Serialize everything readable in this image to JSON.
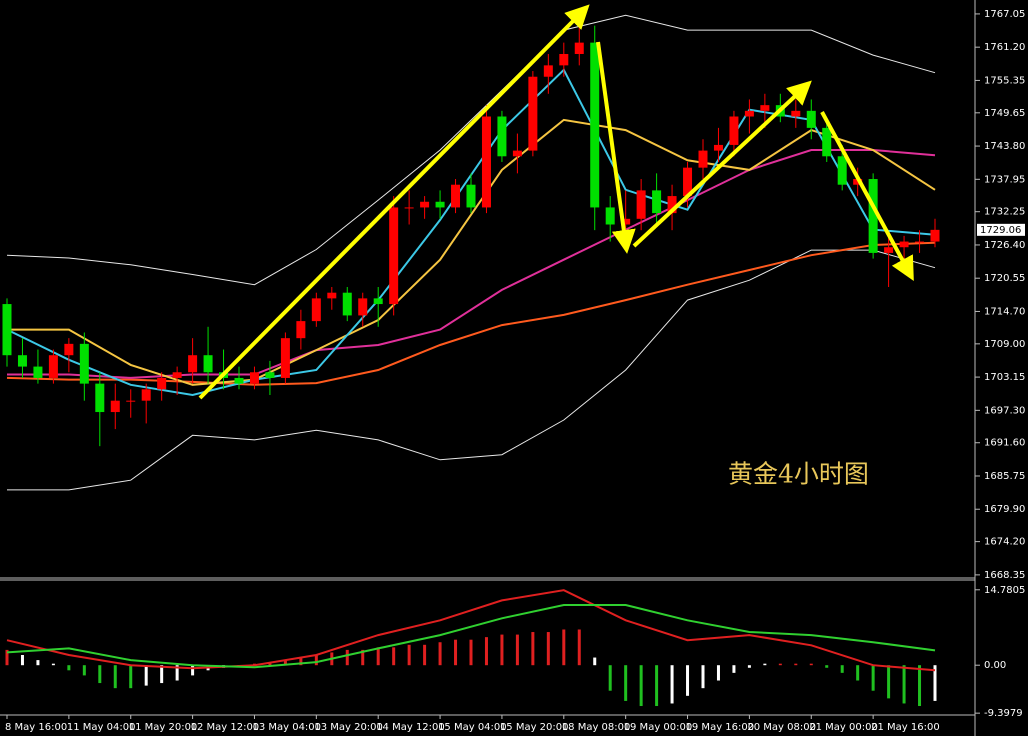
{
  "chart_data": {
    "type": "candlestick",
    "annotation": "黄金4小时图",
    "categories": [
      "8 May 16:00",
      null,
      null,
      null,
      "11 May 04:00",
      null,
      null,
      null,
      "11 May 20:00",
      null,
      null,
      null,
      "12 May 12:00",
      null,
      null,
      null,
      "13 May 04:00",
      null,
      null,
      null,
      "13 May 20:00",
      null,
      null,
      null,
      "14 May 12:00",
      null,
      null,
      null,
      "15 May 04:00",
      null,
      null,
      null,
      "15 May 20:00",
      null,
      null,
      null,
      "18 May 08:00",
      null,
      null,
      null,
      "19 May 00:00",
      null,
      null,
      null,
      "19 May 16:00",
      null,
      null,
      null,
      "20 May 08:00",
      null,
      null,
      null,
      "21 May 00:00",
      null,
      null,
      null,
      "21 May 16:00",
      null,
      null,
      null,
      null
    ],
    "open": [
      1716,
      1707,
      1705,
      1703,
      1707,
      1709,
      1702,
      1697,
      1699,
      1699,
      1701,
      1703,
      1704,
      1707,
      1704,
      1703,
      1702,
      1704,
      1703,
      1710,
      1713,
      1717,
      1718,
      1714,
      1717,
      1716,
      1733,
      1733,
      1734,
      1733,
      1737,
      1733,
      1749,
      1742,
      1743,
      1756,
      1758,
      1760,
      1762,
      1733,
      1730,
      1731,
      1736,
      1732,
      1735,
      1740,
      1743,
      1744,
      1749,
      1750,
      1751,
      1749,
      1750,
      1747,
      1742,
      1737,
      1738,
      1725,
      1726,
      1727,
      1727
    ],
    "high": [
      1717,
      1710,
      1708,
      1708,
      1710,
      1711,
      1704,
      1702,
      1701,
      1702,
      1704,
      1705,
      1710,
      1712,
      1708,
      1705,
      1705,
      1706,
      1711,
      1715,
      1718,
      1719,
      1719,
      1718,
      1719,
      1735,
      1736,
      1735,
      1736,
      1738,
      1739,
      1751,
      1750,
      1746,
      1757,
      1760,
      1762,
      1768,
      1765,
      1735,
      1736,
      1738,
      1739,
      1737,
      1741,
      1745,
      1747,
      1750,
      1752,
      1753,
      1753,
      1752,
      1752,
      1748,
      1744,
      1740,
      1739,
      1728,
      1728,
      1729,
      1731
    ],
    "low": [
      1705,
      1703,
      1702,
      1702,
      1704,
      1699,
      1691,
      1694,
      1696,
      1695,
      1699,
      1700,
      1702,
      1702,
      1701,
      1701,
      1701,
      1700,
      1702,
      1708,
      1712,
      1715,
      1713,
      1712,
      1712,
      1714,
      1730,
      1731,
      1731,
      1732,
      1732,
      1732,
      1741,
      1739,
      1742,
      1753,
      1756,
      1758,
      1729,
      1727,
      1728,
      1729,
      1730,
      1729,
      1733,
      1738,
      1741,
      1742,
      1746,
      1747,
      1748,
      1747,
      1745,
      1741,
      1736,
      1735,
      1724,
      1719,
      1724,
      1725,
      1726
    ],
    "close": [
      1707,
      1705,
      1703,
      1707,
      1709,
      1702,
      1697,
      1699,
      1699,
      1701,
      1703,
      1704,
      1707,
      1704,
      1703,
      1702,
      1704,
      1703,
      1710,
      1713,
      1717,
      1718,
      1714,
      1717,
      1716,
      1733,
      1733,
      1734,
      1733,
      1737,
      1733,
      1749,
      1742,
      1743,
      1756,
      1758,
      1760,
      1762,
      1733,
      1730,
      1731,
      1736,
      1732,
      1735,
      1740,
      1743,
      1744,
      1749,
      1750,
      1751,
      1749,
      1750,
      1747,
      1742,
      1737,
      1738,
      1725,
      1726,
      1727,
      1727,
      1729.06
    ],
    "up_color": "#ff0000",
    "down_color": "#00e000",
    "ylim": [
      1667.8,
      1769.5
    ],
    "yticks": [
      1767.05,
      {
        "value": 1761.2,
        "label": "1761.20"
      },
      1755.35,
      1749.65,
      {
        "value": 1743.8,
        "label": "1743.80"
      },
      1737.95,
      1732.25,
      {
        "value": 1726.4,
        "label": "1726.40"
      },
      1720.55,
      {
        "value": 1714.7,
        "label": "1714.70"
      },
      {
        "value": 1709.0,
        "label": "1709.00"
      },
      1703.15,
      {
        "value": 1697.3,
        "label": "1697.30"
      },
      {
        "value": 1691.6,
        "label": "1691.60"
      },
      1685.75,
      {
        "value": 1679.9,
        "label": "1679.90"
      },
      {
        "value": 1674.2,
        "label": "1674.20"
      },
      1668.35
    ],
    "line_x": [
      0,
      4,
      8,
      12,
      16,
      20,
      24,
      28,
      32,
      36,
      40,
      44,
      48,
      52,
      56,
      60
    ],
    "lines": [
      {
        "color": "#e8e8e8",
        "values": [
          1724.6,
          1724.1,
          1722.9,
          1721.2,
          1719.4,
          1725.6,
          1734.3,
          1743.1,
          1753.6,
          1764.2,
          1766.8,
          1764.2,
          1764.2,
          1764.2,
          1759.8,
          1756.7
        ]
      },
      {
        "color": "#e8e8e8",
        "values": [
          1683.3,
          1683.3,
          1685.0,
          1692.9,
          1692.1,
          1693.8,
          1692.1,
          1688.6,
          1689.5,
          1695.6,
          1704.4,
          1716.7,
          1720.2,
          1725.5,
          1725.5,
          1722.4
        ]
      },
      {
        "color": "#ff5a1e",
        "values": [
          1703.0,
          1702.7,
          1702.7,
          1702.3,
          1701.8,
          1702.1,
          1704.4,
          1708.8,
          1712.3,
          1714.1,
          1716.7,
          1719.4,
          1722.0,
          1724.6,
          1726.4,
          1726.8
        ]
      },
      {
        "color": "#e0309a",
        "values": [
          1703.6,
          1703.6,
          1703.0,
          1703.6,
          1703.6,
          1707.9,
          1708.8,
          1711.5,
          1718.5,
          1723.8,
          1729.1,
          1734.3,
          1739.6,
          1743.1,
          1743.1,
          1742.2
        ]
      },
      {
        "color": "#f5c542",
        "values": [
          1711.5,
          1711.5,
          1705.3,
          1701.8,
          1702.7,
          1707.9,
          1713.2,
          1723.8,
          1739.6,
          1748.4,
          1746.6,
          1741.3,
          1739.6,
          1746.6,
          1743.1,
          1736.1
        ]
      },
      {
        "color": "#3cc8e6",
        "values": [
          1711.5,
          1706.2,
          1701.8,
          1700.0,
          1702.7,
          1704.4,
          1716.7,
          1730.8,
          1746.6,
          1757.2,
          1736.1,
          1732.6,
          1750.2,
          1748.4,
          1729.1,
          1728.2
        ]
      }
    ],
    "macd": {
      "ylim": [
        -12.7,
        16.7
      ],
      "yticks": [
        14.7805,
        {
          "value": 0,
          "label": "0.00"
        },
        -9.3979
      ],
      "up_color": "#e02020",
      "down_color": "#20c020",
      "fade_color": "#ffffff",
      "histogram": [
        3,
        2,
        1,
        0.3,
        -1,
        -2,
        -3.5,
        -4.5,
        -4.5,
        -4,
        -3.5,
        -3,
        -2,
        -1,
        -0.5,
        -0.3,
        0.3,
        0.5,
        1,
        1.5,
        2,
        2.5,
        3,
        3,
        3.5,
        3.5,
        4,
        4,
        4.5,
        5,
        5,
        5.5,
        6,
        6,
        6.5,
        6.5,
        7,
        7,
        1.5,
        -5,
        -7,
        -8,
        -8,
        -7.5,
        -6,
        -4.5,
        -3,
        -1.5,
        -0.5,
        0.3,
        0.3,
        0.3,
        0.3,
        -0.5,
        -1.5,
        -3,
        -5,
        -6.5,
        -7.5,
        -8,
        -7
      ],
      "lines": [
        {
          "color": "#e02020",
          "values": [
            4.9,
            2.0,
            0,
            -0.6,
            0,
            2.0,
            5.9,
            8.8,
            12.7,
            14.7,
            8.8,
            4.9,
            5.9,
            3.9,
            0,
            -1.0
          ]
        },
        {
          "color": "#30d030",
          "values": [
            2.5,
            3.3,
            1.0,
            0,
            -0.4,
            0.6,
            3.3,
            5.9,
            9.2,
            11.8,
            11.8,
            8.8,
            6.5,
            5.9,
            4.5,
            2.9
          ]
        }
      ]
    }
  }
}
